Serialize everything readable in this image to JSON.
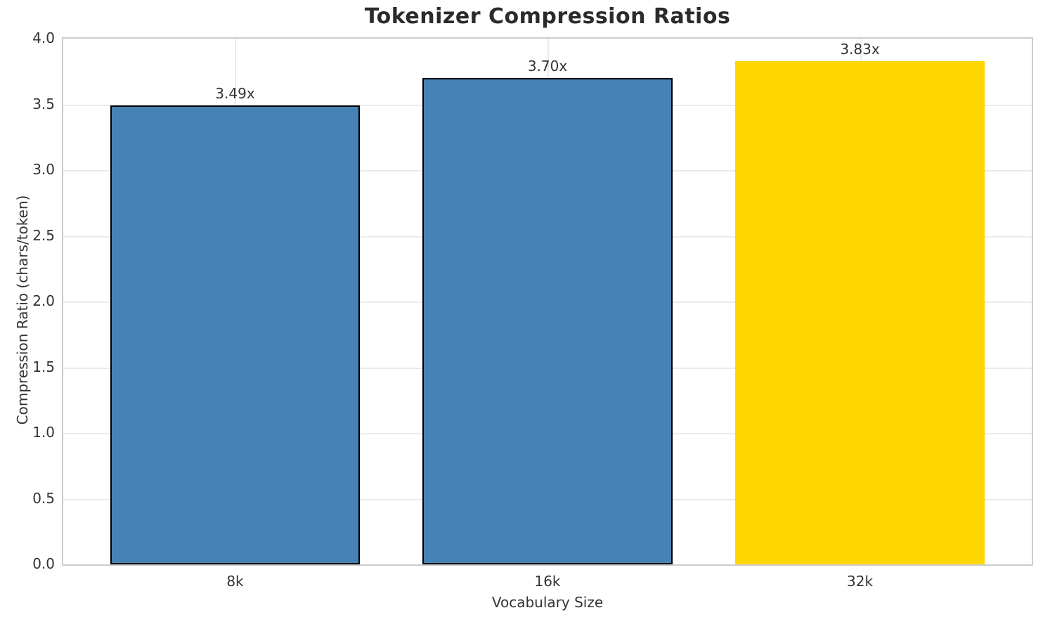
{
  "chart_data": {
    "type": "bar",
    "title": "Tokenizer Compression Ratios",
    "xlabel": "Vocabulary Size",
    "ylabel": "Compression Ratio (chars/token)",
    "categories": [
      "8k",
      "16k",
      "32k"
    ],
    "values": [
      3.49,
      3.7,
      3.83
    ],
    "value_labels": [
      "3.49x",
      "3.70x",
      "3.83x"
    ],
    "bar_colors": [
      "#4682b4",
      "#4682b4",
      "#ffd700"
    ],
    "bar_edge_colors": [
      "#000000",
      "#000000",
      "none"
    ],
    "bar_width": 0.8,
    "ylim": [
      0,
      4
    ],
    "xlim": [
      -0.55,
      2.55
    ],
    "y_tick_labels": [
      "0.0",
      "0.5",
      "1.0",
      "1.5",
      "2.0",
      "2.5",
      "3.0",
      "3.5",
      "4.0"
    ],
    "grid": "both",
    "legend_position": "none",
    "grid_color": "#ebebeb",
    "spine_color": "#cccccc",
    "text_color": "#333333",
    "title_color": "#2b2b2b"
  }
}
